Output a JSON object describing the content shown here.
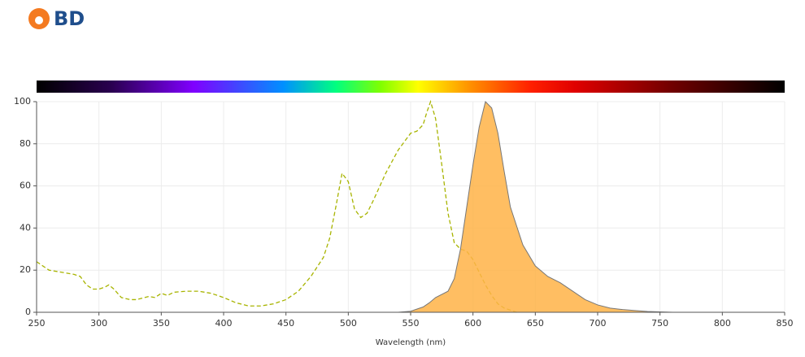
{
  "logo": "BD",
  "chart_data": {
    "type": "line",
    "x_label": "Wavelength (nm)",
    "xlim": [
      250,
      850
    ],
    "xticks": [
      250,
      300,
      350,
      400,
      450,
      500,
      550,
      600,
      650,
      700,
      750,
      800,
      850
    ],
    "ylim": [
      0,
      100
    ],
    "yticks": [
      0,
      20,
      40,
      60,
      80,
      100
    ],
    "grid": true,
    "series": [
      {
        "color": "#a8b400",
        "dash": true,
        "fill": false,
        "x": [
          250,
          260,
          270,
          280,
          285,
          290,
          295,
          300,
          305,
          308,
          312,
          318,
          325,
          330,
          340,
          345,
          350,
          355,
          360,
          370,
          380,
          390,
          400,
          410,
          420,
          430,
          440,
          450,
          460,
          470,
          480,
          485,
          490,
          495,
          500,
          505,
          510,
          515,
          520,
          530,
          540,
          550,
          555,
          560,
          563,
          566,
          570,
          575,
          580,
          585,
          590,
          595,
          600,
          605,
          610,
          615,
          620,
          625,
          630,
          635
        ],
        "values": [
          24,
          20,
          19,
          18,
          17,
          13,
          11,
          11,
          12,
          13,
          11,
          7,
          6,
          6,
          7.5,
          7,
          9,
          8,
          9.5,
          10,
          10,
          9,
          7,
          4.5,
          3,
          3,
          4,
          6,
          10,
          17,
          26,
          35,
          50,
          66,
          62,
          49,
          45,
          47,
          53,
          66,
          77,
          85,
          86,
          89,
          95,
          100,
          92,
          70,
          47,
          33,
          30,
          29,
          25,
          19,
          13,
          8,
          4,
          2,
          1,
          0
        ]
      },
      {
        "color": "#ffb347",
        "dash": false,
        "fill": true,
        "x": [
          540,
          550,
          560,
          565,
          570,
          580,
          585,
          590,
          595,
          600,
          605,
          610,
          615,
          620,
          625,
          630,
          640,
          650,
          660,
          670,
          680,
          690,
          700,
          710,
          720,
          730,
          740,
          750,
          760
        ],
        "values": [
          0,
          0.5,
          2.5,
          4.5,
          7,
          10,
          16,
          30,
          50,
          70,
          88,
          100,
          97,
          85,
          67,
          50,
          32,
          22,
          17,
          14,
          10,
          6,
          3.5,
          2,
          1.3,
          0.8,
          0.4,
          0.2,
          0
        ]
      }
    ]
  }
}
